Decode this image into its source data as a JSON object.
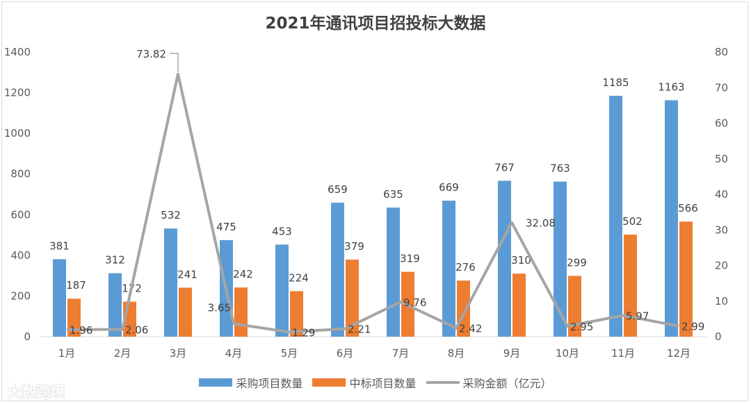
{
  "chart_data": {
    "type": "bar",
    "title": "2021年通讯项目招投标大数据",
    "categories": [
      "1月",
      "2月",
      "3月",
      "4月",
      "5月",
      "6月",
      "7月",
      "8月",
      "9月",
      "10月",
      "11月",
      "12月"
    ],
    "series": [
      {
        "name": "采购项目数量",
        "kind": "bar",
        "axis": "left",
        "color": "#5b9bd5",
        "values": [
          381,
          312,
          532,
          475,
          453,
          659,
          635,
          669,
          767,
          763,
          1185,
          1163
        ]
      },
      {
        "name": "中标项目数量",
        "kind": "bar",
        "axis": "left",
        "color": "#ed7d31",
        "values": [
          187,
          172,
          241,
          242,
          224,
          379,
          319,
          276,
          310,
          299,
          502,
          566
        ]
      },
      {
        "name": "采购金额（亿元）",
        "kind": "line",
        "axis": "right",
        "color": "#a5a5a5",
        "values": [
          1.96,
          2.06,
          73.82,
          3.65,
          1.29,
          2.21,
          9.76,
          2.42,
          32.08,
          2.95,
          5.97,
          2.99
        ]
      }
    ],
    "y_left": {
      "min": 0,
      "max": 1400,
      "ticks": [
        0,
        200,
        400,
        600,
        800,
        1000,
        1200,
        1400
      ]
    },
    "y_right": {
      "min": 0,
      "max": 80,
      "ticks": [
        0,
        10,
        20,
        30,
        40,
        50,
        60,
        70,
        80
      ]
    },
    "legend_position": "bottom",
    "grid": false
  },
  "watermark": "大数跨境"
}
